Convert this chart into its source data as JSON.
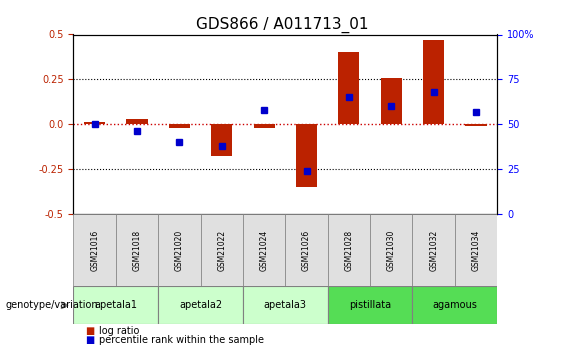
{
  "title": "GDS866 / A011713_01",
  "samples": [
    "GSM21016",
    "GSM21018",
    "GSM21020",
    "GSM21022",
    "GSM21024",
    "GSM21026",
    "GSM21028",
    "GSM21030",
    "GSM21032",
    "GSM21034"
  ],
  "log_ratio": [
    0.01,
    0.03,
    -0.02,
    -0.18,
    -0.02,
    -0.35,
    0.4,
    0.26,
    0.47,
    -0.01
  ],
  "percentile_rank": [
    50,
    46,
    40,
    38,
    58,
    24,
    65,
    60,
    68,
    57
  ],
  "groups": [
    {
      "label": "apetala1",
      "samples": [
        0,
        1
      ],
      "color": "#ccffcc"
    },
    {
      "label": "apetala2",
      "samples": [
        2,
        3
      ],
      "color": "#ccffcc"
    },
    {
      "label": "apetala3",
      "samples": [
        4,
        5
      ],
      "color": "#ccffcc"
    },
    {
      "label": "pistillata",
      "samples": [
        6,
        7
      ],
      "color": "#55dd55"
    },
    {
      "label": "agamous",
      "samples": [
        8,
        9
      ],
      "color": "#55dd55"
    }
  ],
  "ylim_left": [
    -0.5,
    0.5
  ],
  "ylim_right": [
    0,
    100
  ],
  "yticks_left": [
    -0.5,
    -0.25,
    0.0,
    0.25,
    0.5
  ],
  "yticks_right": [
    0,
    25,
    50,
    75,
    100
  ],
  "bar_color": "#bb2200",
  "dot_color": "#0000cc",
  "zero_line_color": "#cc0000",
  "grid_color": "#000000",
  "title_fontsize": 11,
  "tick_fontsize": 7,
  "label_fontsize": 8
}
